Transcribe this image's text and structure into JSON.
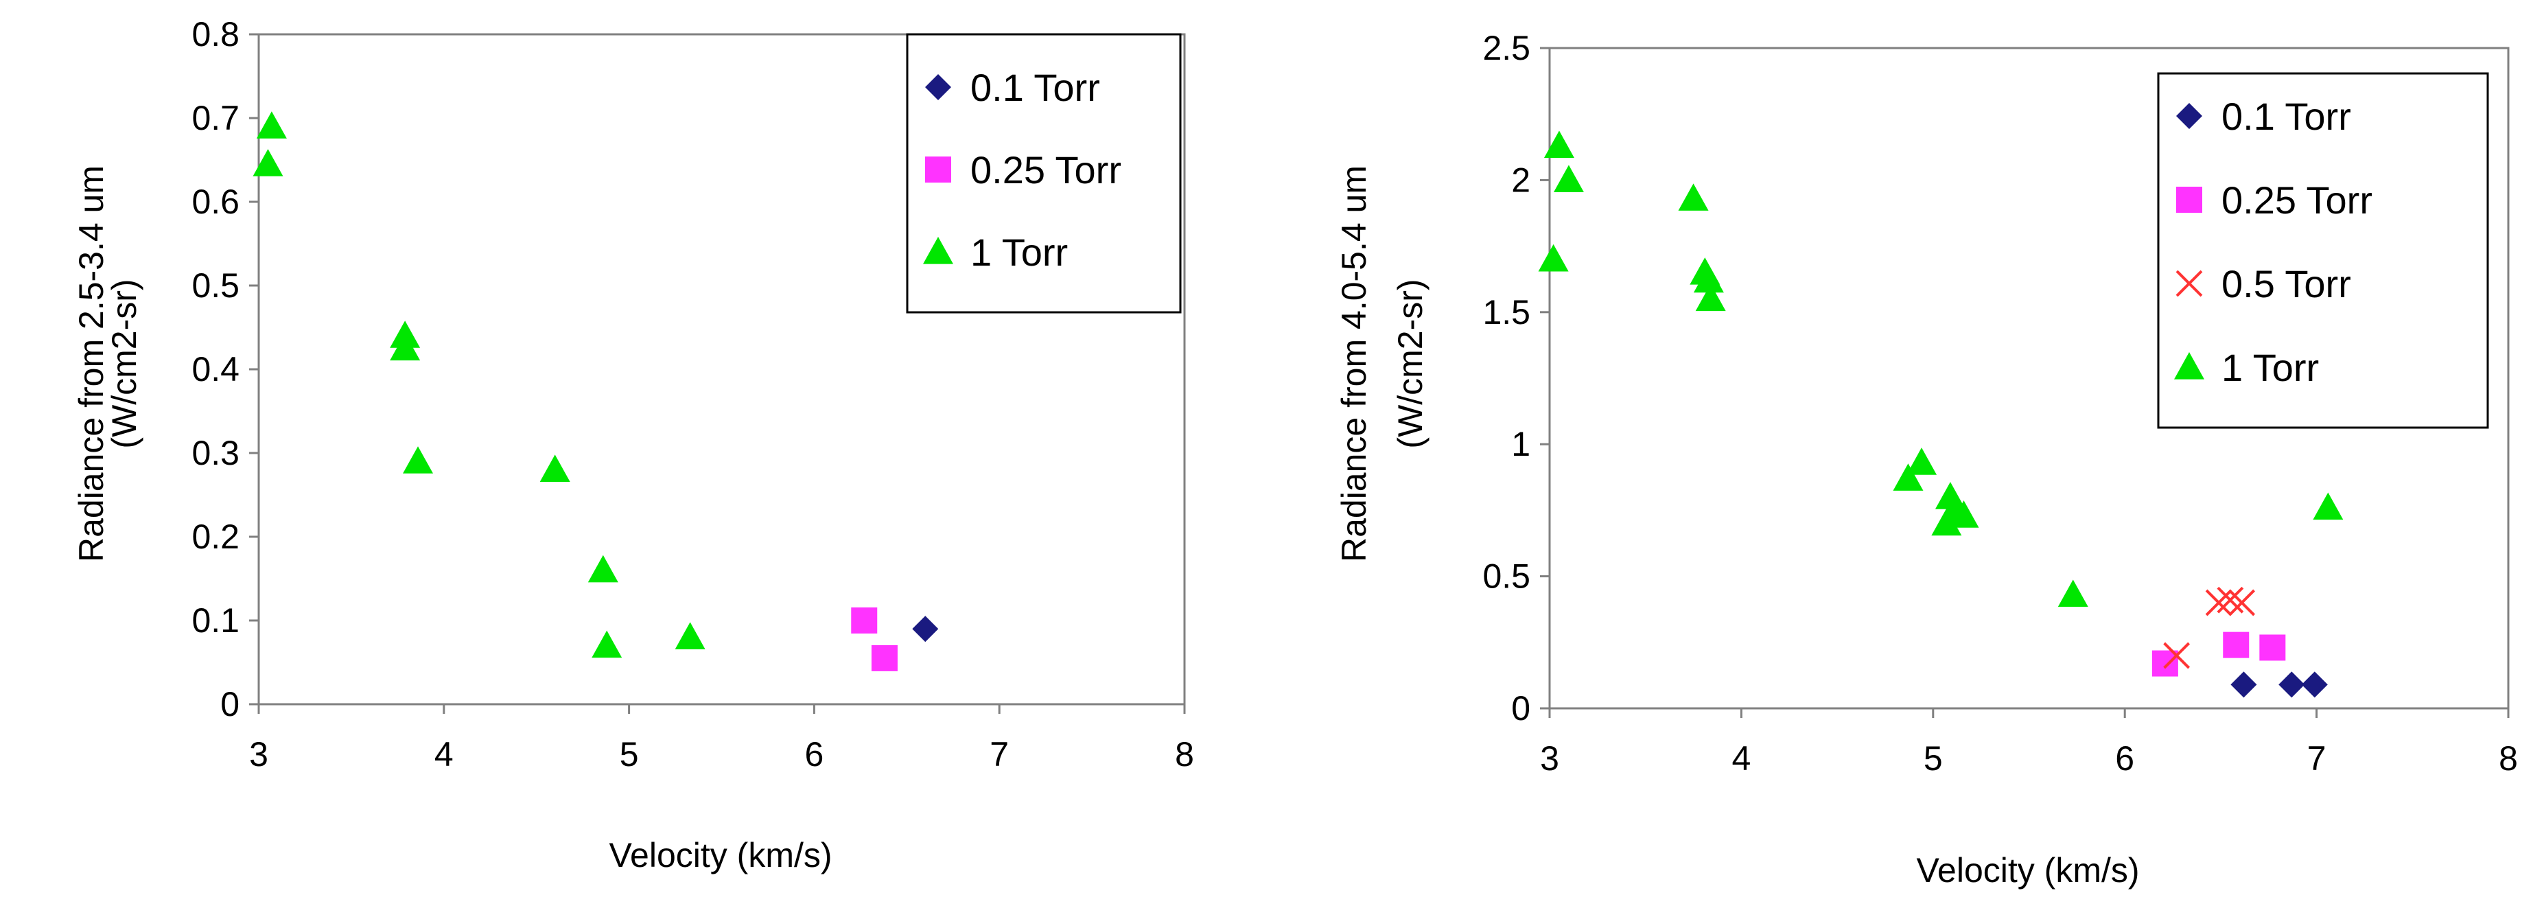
{
  "chart_data": [
    {
      "type": "scatter",
      "title": "",
      "xlabel": "Velocity (km/s)",
      "ylabel": [
        "Radiance from 2.5-3.4 um",
        "(W/cm2-sr)"
      ],
      "xlim": [
        3,
        8
      ],
      "ylim": [
        0,
        0.8
      ],
      "x_ticks": [
        "3",
        "4",
        "5",
        "6",
        "7",
        "8"
      ],
      "y_ticks": [
        "0",
        "0.1",
        "0.2",
        "0.3",
        "0.4",
        "0.5",
        "0.6",
        "0.7",
        "0.8"
      ],
      "grid": false,
      "legend_position": "top-right",
      "series": [
        {
          "name": "0.1 Torr",
          "marker": "diamond",
          "color": "#1a1a80",
          "points": [
            [
              6.6,
              0.09
            ]
          ]
        },
        {
          "name": "0.25 Torr",
          "marker": "square",
          "color": "#ff33ff",
          "points": [
            [
              6.27,
              0.1
            ],
            [
              6.38,
              0.055
            ]
          ]
        },
        {
          "name": "1 Torr",
          "marker": "triangle",
          "color": "#00e600",
          "points": [
            [
              3.07,
              0.69
            ],
            [
              3.05,
              0.645
            ],
            [
              3.79,
              0.44
            ],
            [
              3.79,
              0.425
            ],
            [
              3.86,
              0.29
            ],
            [
              4.6,
              0.28
            ],
            [
              4.86,
              0.16
            ],
            [
              4.88,
              0.07
            ],
            [
              5.33,
              0.08
            ]
          ]
        }
      ]
    },
    {
      "type": "scatter",
      "title": "",
      "xlabel": "Velocity (km/s)",
      "ylabel": [
        "Radiance from 4.0-5.4 um",
        "(W/cm2-sr)"
      ],
      "xlim": [
        3,
        8
      ],
      "ylim": [
        0,
        2.5
      ],
      "x_ticks": [
        "3",
        "4",
        "5",
        "6",
        "7",
        "8"
      ],
      "y_ticks": [
        "0",
        "0.5",
        "1",
        "1.5",
        "2",
        "2.5"
      ],
      "grid": false,
      "legend_position": "top-right",
      "series": [
        {
          "name": "0.1 Torr",
          "marker": "diamond",
          "color": "#1a1a80",
          "points": [
            [
              6.62,
              0.09
            ],
            [
              6.87,
              0.09
            ],
            [
              6.99,
              0.09
            ]
          ]
        },
        {
          "name": "0.25 Torr",
          "marker": "square",
          "color": "#ff33ff",
          "points": [
            [
              6.21,
              0.17
            ],
            [
              6.58,
              0.24
            ],
            [
              6.77,
              0.23
            ]
          ]
        },
        {
          "name": "0.5 Torr",
          "marker": "x",
          "color": "#ff3333",
          "points": [
            [
              6.27,
              0.2
            ],
            [
              6.49,
              0.4
            ],
            [
              6.55,
              0.41
            ],
            [
              6.61,
              0.4
            ]
          ]
        },
        {
          "name": "1 Torr",
          "marker": "triangle",
          "color": "#00e600",
          "points": [
            [
              3.05,
              2.13
            ],
            [
              3.1,
              2.0
            ],
            [
              3.02,
              1.7
            ],
            [
              3.75,
              1.93
            ],
            [
              3.81,
              1.65
            ],
            [
              3.83,
              1.62
            ],
            [
              3.84,
              1.55
            ],
            [
              4.87,
              0.87
            ],
            [
              4.94,
              0.93
            ],
            [
              5.09,
              0.8
            ],
            [
              5.11,
              0.75
            ],
            [
              5.07,
              0.7
            ],
            [
              5.16,
              0.73
            ],
            [
              5.73,
              0.43
            ],
            [
              7.06,
              0.76
            ]
          ]
        }
      ]
    }
  ]
}
